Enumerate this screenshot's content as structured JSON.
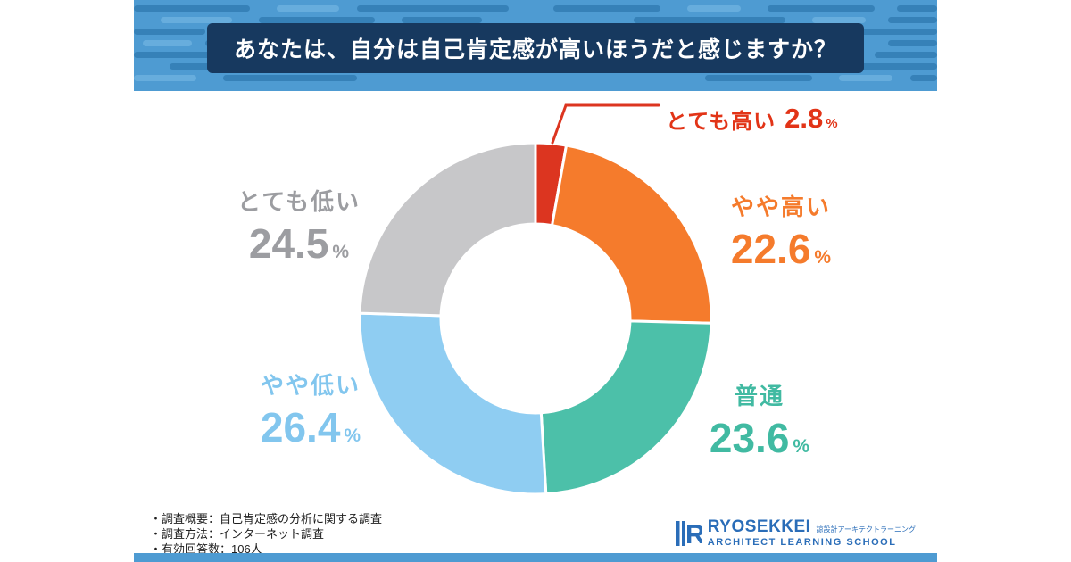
{
  "title": "あなたは、自分は自己肯定感が高いほうだと感じますか？",
  "chart_data": {
    "type": "pie",
    "donut": true,
    "title": "あなたは、自分は自己肯定感が高いほうだと感じますか？",
    "unit": "%",
    "start_angle_deg": -90,
    "direction": "clockwise",
    "segments": [
      {
        "label": "とても高い",
        "value": 2.8,
        "color": "#dc3520",
        "label_color": "#e23417"
      },
      {
        "label": "やや高い",
        "value": 22.6,
        "color": "#f57b2c",
        "label_color": "#f57b2c"
      },
      {
        "label": "普通",
        "value": 23.6,
        "color": "#4cc0a9",
        "label_color": "#41baa2"
      },
      {
        "label": "やや低い",
        "value": 26.4,
        "color": "#8fcdf2",
        "label_color": "#82c6ee"
      },
      {
        "label": "とても低い",
        "value": 24.5,
        "color": "#c7c7c9",
        "label_color": "#9c9da1"
      }
    ]
  },
  "footer": {
    "notes": [
      "・調査概要：自己肯定感の分析に関する調査",
      "・調査方法：インターネット調査",
      "・有効回答数：106人"
    ]
  },
  "logo": {
    "name": "RYOSEKKEI",
    "tagline_jp": "諒設計アーキテクトラーニング",
    "subtitle": "ARCHITECT LEARNING SCHOOL"
  },
  "colors": {
    "banner": "#4e9bd2",
    "banner_dash_dark": "#2e77ad",
    "banner_dash_light": "#7cbbe6",
    "title_box": "#17395f",
    "logo_blue": "#2a6db8"
  }
}
